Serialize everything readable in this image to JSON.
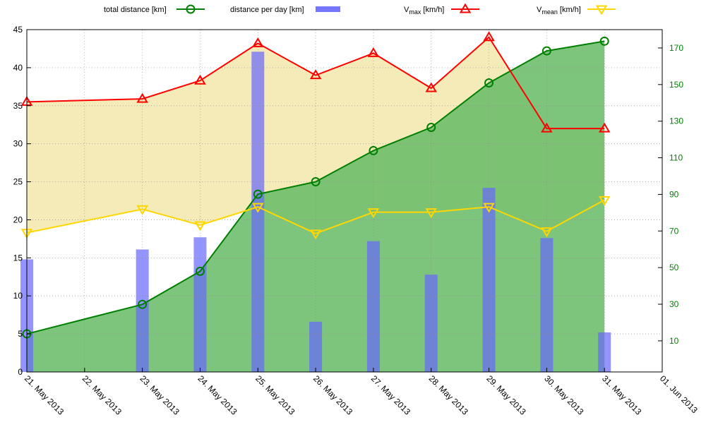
{
  "chart_data": {
    "type": "line",
    "x_dates": [
      "2013-05-21",
      "2013-05-23",
      "2013-05-24",
      "2013-05-25",
      "2013-05-26",
      "2013-05-27",
      "2013-05-28",
      "2013-05-29",
      "2013-05-30",
      "2013-05-31"
    ],
    "x_tick_labels": [
      "21. May 2013",
      "22. May 2013",
      "23. May 2013",
      "24. May 2013",
      "25. May 2013",
      "26. May 2013",
      "27. May 2013",
      "28. May 2013",
      "29. May 2013",
      "30. May 2013",
      "31. May 2013",
      "01. Jun 2013"
    ],
    "left_axis": {
      "range": [
        0,
        45
      ],
      "ticks": [
        0,
        5,
        10,
        15,
        20,
        25,
        30,
        35,
        40,
        45
      ]
    },
    "right_axis": {
      "range": [
        -7,
        180
      ],
      "ticks": [
        10,
        30,
        50,
        70,
        90,
        110,
        130,
        150,
        170
      ],
      "color": "#008000"
    },
    "grid": true,
    "legend_position": "top",
    "series": [
      {
        "key": "total",
        "name": "total distance [km]",
        "axis": "right",
        "style": "line+circle+area",
        "color": "#008000",
        "fill": "#66bb66",
        "values": [
          13.8,
          29.9,
          48.0,
          90.1,
          96.9,
          113.9,
          126.6,
          150.9,
          168.4,
          173.7
        ]
      },
      {
        "key": "daily",
        "name": "distance per day [km]",
        "axis": "left",
        "style": "bar",
        "color": "#6666ff",
        "values": [
          14.8,
          16.1,
          17.7,
          42.1,
          6.6,
          17.2,
          12.8,
          24.2,
          17.6,
          5.2
        ]
      },
      {
        "key": "vmax",
        "name_main": "V",
        "name_sub": "max",
        "name_unit": " [km/h]",
        "axis": "left",
        "style": "line+triangle-up",
        "color": "#ff0000",
        "values": [
          35.5,
          35.9,
          38.3,
          43.2,
          39.0,
          41.9,
          37.3,
          44.0,
          32.0,
          32.0
        ]
      },
      {
        "key": "vmean",
        "name_main": "V",
        "name_sub": "mean",
        "name_unit": " [km/h]",
        "axis": "left",
        "style": "line+triangle-down",
        "color": "#ffd700",
        "values": [
          18.3,
          21.4,
          19.3,
          21.7,
          18.2,
          21.0,
          21.0,
          21.7,
          18.5,
          22.6
        ]
      }
    ],
    "speed_band_fill": "#eedd88"
  }
}
